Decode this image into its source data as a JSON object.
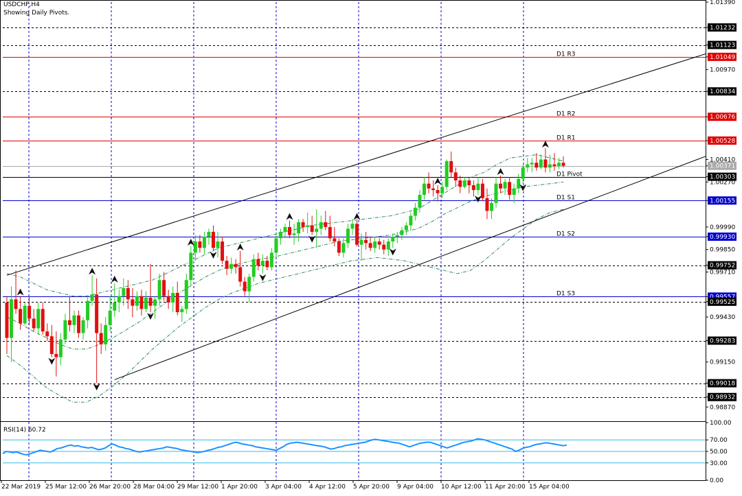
{
  "header": {
    "symbol": "USDCHF,H4",
    "subtitle": "Showing Daily Pivots."
  },
  "colors": {
    "background": "#ffffff",
    "axis": "#000000",
    "bull": "#22cc22",
    "bear": "#e01010",
    "resistance": "#e00000",
    "support": "#0000cc",
    "pivot": "#000000",
    "grid_vertical": "#0000cc",
    "rsi_line": "#1e90ff",
    "rsi_levels": "#33bbee",
    "bands": "#2e8b57",
    "channel": "#000000",
    "bid": "#aaaaaa"
  },
  "chart_data": [
    {
      "type": "candlestick",
      "title": "USDCHF,H4",
      "subtitle": "Showing Daily Pivots.",
      "price_axis": {
        "range": [
          0.9879,
          1.0139
        ],
        "tick_labels": [
          "1.01390",
          "1.01232",
          "1.01123",
          "1.01049",
          "1.00970",
          "1.00834",
          "1.00676",
          "1.00528",
          "1.00410",
          "1.00371",
          "1.00303",
          "1.00270",
          "1.00155",
          "0.99990",
          "0.99930",
          "0.99850",
          "0.99752",
          "0.99710",
          "0.99557",
          "0.99525",
          "0.99430",
          "0.99283",
          "0.99150",
          "0.99018",
          "0.98932",
          "0.98870"
        ],
        "boxed_labels": [
          "1.01232",
          "1.01123",
          "1.00834",
          "1.00303",
          "0.99752",
          "0.99557",
          "0.99525",
          "0.99283",
          "0.99018",
          "0.98932"
        ],
        "red_boxed": [
          "1.01049",
          "1.00676",
          "1.00528"
        ],
        "blue_boxed": [
          "1.00155",
          "0.99930",
          "0.99557"
        ],
        "bid_label": "1.00371"
      },
      "time_axis": [
        "22 Mar 2019",
        "25 Mar 12:00",
        "26 Mar 20:00",
        "28 Mar 04:00",
        "29 Mar 12:00",
        "1 Apr 20:00",
        "3 Apr 04:00",
        "4 Apr 12:00",
        "5 Apr 20:00",
        "9 Apr 04:00",
        "10 Apr 12:00",
        "11 Apr 20:00",
        "15 Apr 04:00"
      ],
      "pivots": [
        {
          "name": "D1 R3",
          "value": 1.01049,
          "kind": "resistance"
        },
        {
          "name": "D1 R2",
          "value": 1.00676,
          "kind": "resistance"
        },
        {
          "name": "D1 R1",
          "value": 1.00528,
          "kind": "resistance"
        },
        {
          "name": "D1 Pivot",
          "value": 1.00303,
          "kind": "pivot"
        },
        {
          "name": "D1 S1",
          "value": 1.00155,
          "kind": "support"
        },
        {
          "name": "D1 S2",
          "value": 0.9993,
          "kind": "support"
        },
        {
          "name": "D1 S3",
          "value": 0.99557,
          "kind": "support"
        }
      ],
      "dashed_levels": [
        1.01232,
        1.01123,
        1.00834,
        0.99752,
        0.99525,
        0.99283,
        0.99018,
        0.98932
      ],
      "bid": 1.00371,
      "channel": {
        "upper": [
          [
            0,
            0.9969
          ],
          [
            165,
            1.0115
          ]
        ],
        "lower": [
          [
            24,
            0.9904
          ],
          [
            165,
            1.00528
          ]
        ]
      },
      "candles": [
        [
          0.9952,
          0.9956,
          0.992,
          0.993
        ],
        [
          0.993,
          0.9962,
          0.9915,
          0.9954
        ],
        [
          0.9954,
          0.9972,
          0.9945,
          0.9948
        ],
        [
          0.9948,
          0.9956,
          0.9935,
          0.9939
        ],
        [
          0.9939,
          0.9952,
          0.9938,
          0.995
        ],
        [
          0.995,
          0.9956,
          0.9938,
          0.9942
        ],
        [
          0.9942,
          0.9948,
          0.9934,
          0.9936
        ],
        [
          0.9936,
          0.9952,
          0.9932,
          0.9948
        ],
        [
          0.9948,
          0.9952,
          0.9932,
          0.9934
        ],
        [
          0.9934,
          0.9939,
          0.9928,
          0.9931
        ],
        [
          0.9931,
          0.9938,
          0.9918,
          0.992
        ],
        [
          0.992,
          0.9934,
          0.9906,
          0.9918
        ],
        [
          0.9918,
          0.9933,
          0.9913,
          0.9929
        ],
        [
          0.9929,
          0.9945,
          0.9926,
          0.9941
        ],
        [
          0.9941,
          0.9956,
          0.9934,
          0.9938
        ],
        [
          0.9938,
          0.9947,
          0.9933,
          0.9944
        ],
        [
          0.9944,
          0.9947,
          0.993,
          0.9933
        ],
        [
          0.9933,
          0.9943,
          0.9929,
          0.9941
        ],
        [
          0.9941,
          0.9956,
          0.9936,
          0.9953
        ],
        [
          0.9953,
          0.9969,
          0.995,
          0.9957
        ],
        [
          0.9957,
          0.9967,
          0.9902,
          0.9933
        ],
        [
          0.9933,
          0.9939,
          0.992,
          0.9926
        ],
        [
          0.9926,
          0.9943,
          0.9922,
          0.9938
        ],
        [
          0.9938,
          0.9956,
          0.9934,
          0.9947
        ],
        [
          0.9947,
          0.9964,
          0.9943,
          0.9952
        ],
        [
          0.9952,
          0.996,
          0.9946,
          0.9956
        ],
        [
          0.9956,
          0.9967,
          0.995,
          0.9961
        ],
        [
          0.9961,
          0.9966,
          0.9948,
          0.9954
        ],
        [
          0.9954,
          0.9961,
          0.9943,
          0.995
        ],
        [
          0.995,
          0.9959,
          0.9947,
          0.9956
        ],
        [
          0.9956,
          0.996,
          0.9944,
          0.9948
        ],
        [
          0.9948,
          0.9959,
          0.9946,
          0.9955
        ],
        [
          0.9955,
          0.9976,
          0.9946,
          0.995
        ],
        [
          0.995,
          0.9956,
          0.9942,
          0.9954
        ],
        [
          0.9954,
          0.997,
          0.995,
          0.9966
        ],
        [
          0.9966,
          0.9971,
          0.9953,
          0.9956
        ],
        [
          0.9956,
          0.996,
          0.9948,
          0.9952
        ],
        [
          0.9952,
          0.9962,
          0.9946,
          0.9958
        ],
        [
          0.9958,
          0.9965,
          0.9944,
          0.9946
        ],
        [
          0.9946,
          0.995,
          0.994,
          0.9948
        ],
        [
          0.9948,
          0.997,
          0.9945,
          0.9966
        ],
        [
          0.9966,
          0.9987,
          0.9962,
          0.9983
        ],
        [
          0.9983,
          0.9994,
          0.9978,
          0.999
        ],
        [
          0.999,
          0.9994,
          0.9983,
          0.9986
        ],
        [
          0.9986,
          0.9996,
          0.9982,
          0.9993
        ],
        [
          0.9993,
          0.9998,
          0.9988,
          0.9996
        ],
        [
          0.9996,
          1.0,
          0.9984,
          0.9986
        ],
        [
          0.9986,
          0.9996,
          0.998,
          0.999
        ],
        [
          0.999,
          0.9993,
          0.9976,
          0.9978
        ],
        [
          0.9978,
          0.9981,
          0.9969,
          0.9973
        ],
        [
          0.9973,
          0.998,
          0.997,
          0.9976
        ],
        [
          0.9976,
          0.9979,
          0.997,
          0.9974
        ],
        [
          0.9974,
          0.9984,
          0.9962,
          0.9965
        ],
        [
          0.9965,
          0.9968,
          0.9956,
          0.9959
        ],
        [
          0.9959,
          0.997,
          0.9952,
          0.9968
        ],
        [
          0.9968,
          0.9982,
          0.9965,
          0.9979
        ],
        [
          0.9979,
          0.9983,
          0.9972,
          0.9975
        ],
        [
          0.9975,
          0.9982,
          0.997,
          0.9978
        ],
        [
          0.9978,
          0.9981,
          0.9972,
          0.9974
        ],
        [
          0.9974,
          0.9986,
          0.9972,
          0.9983
        ],
        [
          0.9983,
          0.9995,
          0.998,
          0.9992
        ],
        [
          0.9992,
          0.9998,
          0.9988,
          0.9996
        ],
        [
          0.9996,
          1.0001,
          0.9992,
          0.9999
        ],
        [
          0.9999,
          1.0003,
          0.9992,
          0.9994
        ],
        [
          0.9994,
          1.0001,
          0.9988,
          0.9995
        ],
        [
          0.9995,
          1.0004,
          0.999,
          1.0002
        ],
        [
          1.0002,
          1.0004,
          0.9996,
          0.9999
        ],
        [
          0.9999,
          1.0008,
          0.9995,
          1.0
        ],
        [
          1.0,
          1.0006,
          0.9994,
          0.9996
        ],
        [
          0.9996,
          1.001,
          0.9986,
          0.9998
        ],
        [
          0.9998,
          1.0006,
          0.9994,
          1.0002
        ],
        [
          1.0002,
          1.0009,
          0.9997,
          0.9999
        ],
        [
          0.9999,
          1.0006,
          0.999,
          0.9992
        ],
        [
          0.9992,
          0.9999,
          0.9987,
          0.999
        ],
        [
          0.999,
          0.9992,
          0.9981,
          0.9983
        ],
        [
          0.9983,
          0.9992,
          0.998,
          0.9989
        ],
        [
          0.9989,
          1.0001,
          0.9986,
          0.9998
        ],
        [
          0.9998,
          1.0004,
          0.9994,
          1.0001
        ],
        [
          1.0001,
          1.0003,
          0.9987,
          0.9988
        ],
        [
          0.9988,
          0.9995,
          0.9978,
          0.9991
        ],
        [
          0.9991,
          0.9996,
          0.9985,
          0.9989
        ],
        [
          0.9989,
          0.9993,
          0.9984,
          0.9986
        ],
        [
          0.9986,
          0.9993,
          0.9983,
          0.999
        ],
        [
          0.999,
          0.9992,
          0.9985,
          0.9988
        ],
        [
          0.9988,
          0.9991,
          0.9982,
          0.9985
        ],
        [
          0.9985,
          0.9992,
          0.9981,
          0.999
        ],
        [
          0.999,
          0.9995,
          0.9986,
          0.9993
        ],
        [
          0.9993,
          0.9996,
          0.9989,
          0.9994
        ],
        [
          0.9994,
          0.9999,
          0.9991,
          0.9997
        ],
        [
          0.9997,
          1.0002,
          0.9994,
          1.0
        ],
        [
          1.0,
          1.0008,
          0.9997,
          1.0006
        ],
        [
          1.0006,
          1.0014,
          1.0003,
          1.0011
        ],
        [
          1.0011,
          1.0022,
          1.0008,
          1.0019
        ],
        [
          1.0019,
          1.003,
          1.0016,
          1.0026
        ],
        [
          1.0026,
          1.0033,
          1.002,
          1.0023
        ],
        [
          1.0023,
          1.0028,
          1.0018,
          1.0022
        ],
        [
          1.0022,
          1.0025,
          1.0015,
          1.002
        ],
        [
          1.002,
          1.0027,
          1.0017,
          1.0024
        ],
        [
          1.0024,
          1.0041,
          1.0022,
          1.004
        ],
        [
          1.004,
          1.0046,
          1.003,
          1.0033
        ],
        [
          1.0033,
          1.0036,
          1.0024,
          1.0028
        ],
        [
          1.0028,
          1.0031,
          1.002,
          1.0024
        ],
        [
          1.0024,
          1.003,
          1.0023,
          1.0028
        ],
        [
          1.0028,
          1.0029,
          1.002,
          1.0025
        ],
        [
          1.0025,
          1.0028,
          1.0018,
          1.0022
        ],
        [
          1.0022,
          1.003,
          1.0019,
          1.0026
        ],
        [
          1.0026,
          1.0029,
          1.0015,
          1.0017
        ],
        [
          1.0017,
          1.0023,
          1.0004,
          1.0009
        ],
        [
          1.0009,
          1.0017,
          1.0004,
          1.0014
        ],
        [
          1.0014,
          1.003,
          1.0011,
          1.0026
        ],
        [
          1.0026,
          1.0031,
          1.002,
          1.0023
        ],
        [
          1.0023,
          1.0029,
          1.0019,
          1.0027
        ],
        [
          1.0027,
          1.003,
          1.0016,
          1.0019
        ],
        [
          1.0019,
          1.0026,
          1.0014,
          1.0023
        ],
        [
          1.0023,
          1.0032,
          1.002,
          1.0029
        ],
        [
          1.0029,
          1.0038,
          1.0026,
          1.0036
        ],
        [
          1.0036,
          1.0042,
          1.0033,
          1.0038
        ],
        [
          1.0038,
          1.0042,
          1.0033,
          1.0039
        ],
        [
          1.0039,
          1.0045,
          1.0034,
          1.0036
        ],
        [
          1.0036,
          1.0044,
          1.0035,
          1.0041
        ],
        [
          1.0041,
          1.0048,
          1.0033,
          1.0036
        ],
        [
          1.0036,
          1.0044,
          1.0033,
          1.0038
        ],
        [
          1.0038,
          1.0045,
          1.0034,
          1.0037
        ],
        [
          1.0037,
          1.0042,
          1.0035,
          1.0039
        ],
        [
          1.0039,
          1.0043,
          1.0036,
          1.00371
        ]
      ],
      "bands": {
        "upper": [
          0.997,
          0.9968,
          0.9964,
          0.996,
          0.9958,
          0.9956,
          0.9956,
          0.9958,
          0.996,
          0.9962,
          0.9964,
          0.9966,
          0.997,
          0.9974,
          0.9978,
          0.9982,
          0.9986,
          0.9988,
          0.999,
          0.9992,
          0.9994,
          0.9996,
          0.9998,
          1.0,
          1.0001,
          1.0002,
          1.0003,
          1.0004,
          1.0005,
          1.0006,
          1.0008,
          1.001,
          1.0015,
          1.002,
          1.0025,
          1.003,
          1.0033,
          1.0038,
          1.0042,
          1.0043,
          1.0044,
          1.0042,
          1.004
        ],
        "middle": [
          0.9943,
          0.9939,
          0.9934,
          0.993,
          0.9926,
          0.9923,
          0.9923,
          0.9926,
          0.993,
          0.9935,
          0.994,
          0.9946,
          0.9952,
          0.9958,
          0.9963,
          0.9968,
          0.9972,
          0.9975,
          0.9977,
          0.9979,
          0.998,
          0.9982,
          0.9984,
          0.9986,
          0.9988,
          0.999,
          0.9991,
          0.9992,
          0.9993,
          0.9994,
          0.9996,
          0.9998,
          1.0002,
          1.0007,
          1.0011,
          1.0015,
          1.0018,
          1.002,
          1.0022,
          1.0024,
          1.0025,
          1.0026,
          1.0027
        ],
        "lower": [
          0.9919,
          0.9913,
          0.9906,
          0.9899,
          0.9894,
          0.989,
          0.989,
          0.9894,
          0.99,
          0.9907,
          0.9915,
          0.9923,
          0.993,
          0.9937,
          0.9943,
          0.9949,
          0.9954,
          0.9958,
          0.9961,
          0.9964,
          0.9966,
          0.9968,
          0.997,
          0.9972,
          0.9974,
          0.9976,
          0.9978,
          0.9979,
          0.998,
          0.9979,
          0.9978,
          0.9976,
          0.9974,
          0.9972,
          0.997,
          0.9972,
          0.9978,
          0.9985,
          0.9992,
          0.9998,
          1.0004,
          1.0008,
          1.001
        ]
      }
    },
    {
      "type": "line",
      "title": "RSI(14) 60.72",
      "name": "RSI(14)",
      "current": 60.72,
      "ylim": [
        0,
        100
      ],
      "tick_labels": [
        "100.00",
        "70.00",
        "50.00",
        "30.00",
        "0.00"
      ],
      "levels": [
        70,
        50,
        30
      ],
      "values": [
        46,
        50,
        49,
        48,
        49,
        47,
        45,
        44,
        46,
        48,
        50,
        52,
        51,
        50,
        49,
        52,
        55,
        56,
        58,
        60,
        61,
        59,
        60,
        58,
        57,
        56,
        57,
        55,
        53,
        54,
        56,
        60,
        63,
        61,
        58,
        57,
        55,
        54,
        52,
        50,
        49,
        50,
        51,
        52,
        53,
        54,
        55,
        56,
        58,
        57,
        56,
        55,
        53,
        52,
        51,
        50,
        49,
        48,
        49,
        50,
        52,
        53,
        55,
        57,
        58,
        60,
        62,
        64,
        66,
        65,
        63,
        62,
        61,
        60,
        58,
        57,
        56,
        55,
        54,
        53,
        52,
        55,
        58,
        62,
        64,
        65,
        66,
        65,
        64,
        63,
        62,
        61,
        60,
        59,
        58,
        56,
        54,
        55,
        57,
        58,
        60,
        61,
        62,
        63,
        64,
        65,
        66,
        68,
        70,
        71,
        70,
        69,
        68,
        67,
        66,
        65,
        64,
        62,
        60,
        58,
        60,
        62,
        64,
        65,
        66,
        66,
        64,
        62,
        60,
        58,
        56,
        58,
        60,
        62,
        64,
        66,
        67,
        68,
        70,
        72,
        71,
        70,
        68,
        66,
        64,
        62,
        60,
        58,
        56,
        54,
        50,
        52,
        55,
        57,
        58,
        60,
        62,
        63,
        64,
        65,
        64,
        63,
        62,
        61,
        60,
        61
      ]
    }
  ]
}
